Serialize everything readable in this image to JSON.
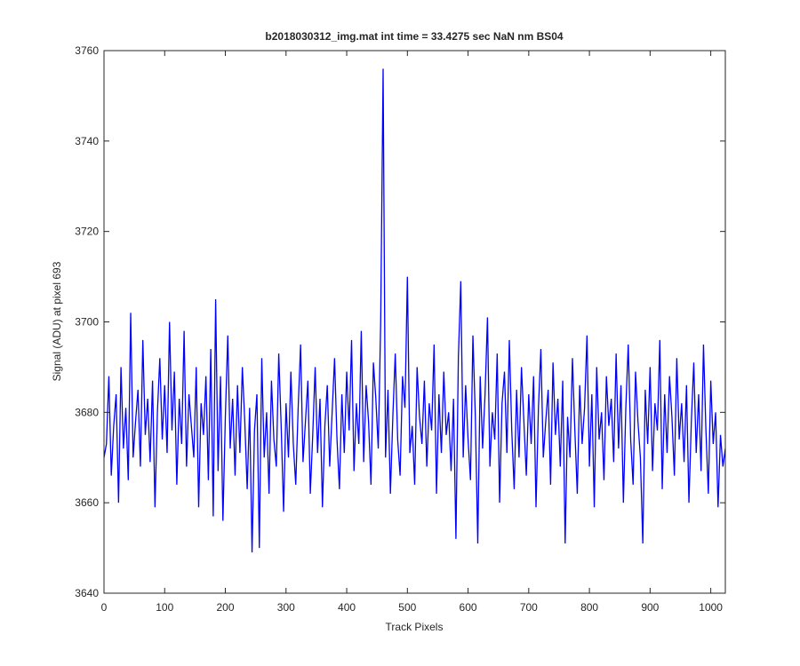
{
  "chart_data": {
    "type": "line",
    "title": "b2018030312_img.mat int time = 33.4275 sec  NaN nm BS04",
    "x_label": "Track Pixels",
    "y_label": "Signal (ADU) at pixel 693",
    "xlim": [
      0,
      1024
    ],
    "ylim": [
      3640,
      3760
    ],
    "xticks": [
      0,
      100,
      200,
      300,
      400,
      500,
      600,
      700,
      800,
      900,
      1000
    ],
    "yticks": [
      3640,
      3660,
      3680,
      3700,
      3720,
      3740,
      3760
    ],
    "x": [
      0,
      4,
      8,
      12,
      16,
      20,
      24,
      28,
      32,
      36,
      40,
      44,
      48,
      52,
      56,
      60,
      64,
      68,
      72,
      76,
      80,
      84,
      88,
      92,
      96,
      100,
      104,
      108,
      112,
      116,
      120,
      124,
      128,
      132,
      136,
      140,
      144,
      148,
      152,
      156,
      160,
      164,
      168,
      172,
      176,
      180,
      184,
      188,
      192,
      196,
      200,
      204,
      208,
      212,
      216,
      220,
      224,
      228,
      232,
      236,
      240,
      244,
      248,
      252,
      256,
      260,
      264,
      268,
      272,
      276,
      280,
      284,
      288,
      292,
      296,
      300,
      304,
      308,
      312,
      316,
      320,
      324,
      328,
      332,
      336,
      340,
      344,
      348,
      352,
      356,
      360,
      364,
      368,
      372,
      376,
      380,
      384,
      388,
      392,
      396,
      400,
      404,
      408,
      412,
      416,
      420,
      424,
      428,
      432,
      436,
      440,
      444,
      448,
      452,
      456,
      460,
      464,
      468,
      472,
      476,
      480,
      484,
      488,
      492,
      496,
      500,
      504,
      508,
      512,
      516,
      520,
      524,
      528,
      532,
      536,
      540,
      544,
      548,
      552,
      556,
      560,
      564,
      568,
      572,
      576,
      580,
      584,
      588,
      592,
      596,
      600,
      604,
      608,
      612,
      616,
      620,
      624,
      628,
      632,
      636,
      640,
      644,
      648,
      652,
      656,
      660,
      664,
      668,
      672,
      676,
      680,
      684,
      688,
      692,
      696,
      700,
      704,
      708,
      712,
      716,
      720,
      724,
      728,
      732,
      736,
      740,
      744,
      748,
      752,
      756,
      760,
      764,
      768,
      772,
      776,
      780,
      784,
      788,
      792,
      796,
      800,
      804,
      808,
      812,
      816,
      820,
      824,
      828,
      832,
      836,
      840,
      844,
      848,
      852,
      856,
      860,
      864,
      868,
      872,
      876,
      880,
      884,
      888,
      892,
      896,
      900,
      904,
      908,
      912,
      916,
      920,
      924,
      928,
      932,
      936,
      940,
      944,
      948,
      952,
      956,
      960,
      964,
      968,
      972,
      976,
      980,
      984,
      988,
      992,
      996,
      1000,
      1004,
      1008,
      1012,
      1016,
      1020,
      1024
    ],
    "series": [
      {
        "name": "signal",
        "color": "#0000ff",
        "values": [
          3670,
          3673,
          3688,
          3666,
          3677,
          3684,
          3660,
          3690,
          3672,
          3681,
          3665,
          3702,
          3670,
          3678,
          3685,
          3668,
          3696,
          3675,
          3683,
          3669,
          3687,
          3659,
          3680,
          3692,
          3674,
          3686,
          3671,
          3700,
          3676,
          3689,
          3664,
          3683,
          3673,
          3698,
          3668,
          3684,
          3677,
          3670,
          3690,
          3659,
          3682,
          3675,
          3688,
          3665,
          3694,
          3657,
          3705,
          3667,
          3688,
          3656,
          3679,
          3697,
          3672,
          3683,
          3666,
          3686,
          3671,
          3690,
          3678,
          3663,
          3681,
          3649,
          3676,
          3684,
          3650,
          3692,
          3670,
          3680,
          3662,
          3687,
          3674,
          3668,
          3693,
          3677,
          3658,
          3682,
          3670,
          3689,
          3673,
          3664,
          3681,
          3695,
          3669,
          3678,
          3687,
          3662,
          3675,
          3690,
          3671,
          3683,
          3659,
          3677,
          3686,
          3668,
          3680,
          3692,
          3674,
          3663,
          3684,
          3671,
          3689,
          3676,
          3696,
          3667,
          3682,
          3673,
          3698,
          3669,
          3686,
          3678,
          3664,
          3691,
          3683,
          3672,
          3700,
          3756,
          3670,
          3685,
          3662,
          3679,
          3693,
          3674,
          3666,
          3688,
          3681,
          3710,
          3671,
          3677,
          3664,
          3690,
          3679,
          3673,
          3687,
          3668,
          3682,
          3676,
          3695,
          3662,
          3684,
          3671,
          3689,
          3675,
          3680,
          3667,
          3683,
          3652,
          3692,
          3709,
          3670,
          3686,
          3674,
          3665,
          3697,
          3679,
          3651,
          3688,
          3672,
          3684,
          3701,
          3668,
          3680,
          3674,
          3693,
          3660,
          3682,
          3689,
          3671,
          3696,
          3676,
          3663,
          3685,
          3670,
          3690,
          3678,
          3666,
          3684,
          3673,
          3688,
          3659,
          3681,
          3694,
          3670,
          3678,
          3685,
          3664,
          3691,
          3675,
          3683,
          3668,
          3687,
          3651,
          3679,
          3670,
          3692,
          3676,
          3662,
          3686,
          3673,
          3681,
          3697,
          3668,
          3684,
          3659,
          3690,
          3674,
          3680,
          3665,
          3688,
          3677,
          3683,
          3669,
          3693,
          3672,
          3686,
          3660,
          3681,
          3695,
          3674,
          3664,
          3689,
          3678,
          3670,
          3651,
          3685,
          3673,
          3690,
          3667,
          3682,
          3676,
          3696,
          3663,
          3684,
          3671,
          3688,
          3679,
          3666,
          3692,
          3674,
          3682,
          3669,
          3686,
          3660,
          3678,
          3691,
          3671,
          3684,
          3667,
          3695,
          3676,
          3662,
          3687,
          3673,
          3680,
          3659,
          3675,
          3668,
          3672
        ]
      }
    ]
  }
}
